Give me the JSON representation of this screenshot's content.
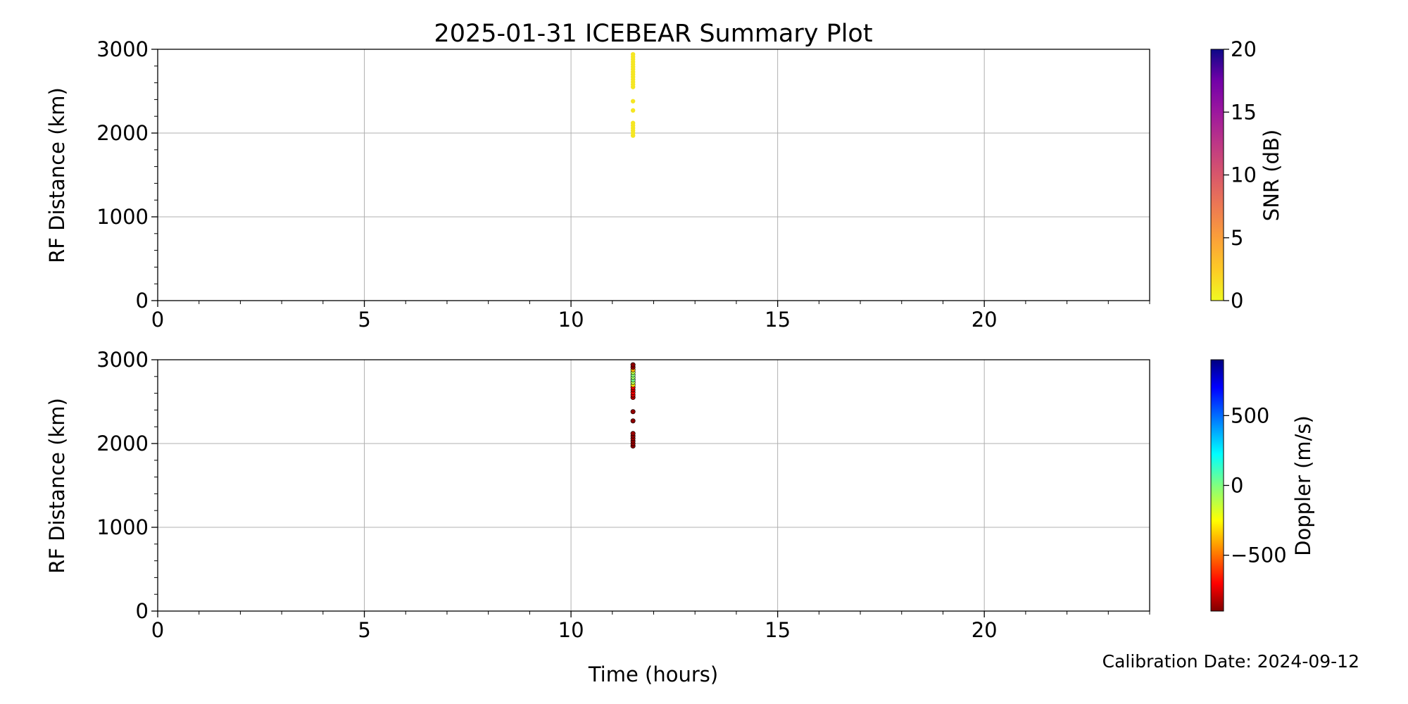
{
  "title": "2025-01-31 ICEBEAR Summary Plot",
  "footer_note": "Calibration Date: 2024-09-12",
  "chart_data": [
    {
      "type": "scatter",
      "xlabel": "",
      "ylabel": "RF Distance (km)",
      "xlim": [
        0,
        24
      ],
      "ylim": [
        0,
        3000
      ],
      "xticks": [
        "0",
        "5",
        "10",
        "15",
        "20"
      ],
      "yticks": [
        "0",
        "1000",
        "2000",
        "3000"
      ],
      "grid": true,
      "colorbar": {
        "label": "SNR (dB)",
        "colormap": "plasma_r",
        "range": [
          0,
          20
        ],
        "ticks": [
          "0",
          "5",
          "10",
          "15",
          "20"
        ]
      },
      "points": [
        {
          "x": 11.5,
          "y": 1970,
          "c": 1
        },
        {
          "x": 11.5,
          "y": 2000,
          "c": 1
        },
        {
          "x": 11.5,
          "y": 2030,
          "c": 1
        },
        {
          "x": 11.5,
          "y": 2060,
          "c": 1
        },
        {
          "x": 11.5,
          "y": 2090,
          "c": 1
        },
        {
          "x": 11.5,
          "y": 2120,
          "c": 1
        },
        {
          "x": 11.5,
          "y": 2270,
          "c": 1
        },
        {
          "x": 11.5,
          "y": 2380,
          "c": 1
        },
        {
          "x": 11.5,
          "y": 2550,
          "c": 1
        },
        {
          "x": 11.5,
          "y": 2580,
          "c": 1
        },
        {
          "x": 11.5,
          "y": 2610,
          "c": 1
        },
        {
          "x": 11.5,
          "y": 2640,
          "c": 1
        },
        {
          "x": 11.5,
          "y": 2670,
          "c": 1
        },
        {
          "x": 11.5,
          "y": 2700,
          "c": 1
        },
        {
          "x": 11.5,
          "y": 2730,
          "c": 1
        },
        {
          "x": 11.5,
          "y": 2760,
          "c": 1
        },
        {
          "x": 11.5,
          "y": 2790,
          "c": 1
        },
        {
          "x": 11.5,
          "y": 2820,
          "c": 1
        },
        {
          "x": 11.5,
          "y": 2850,
          "c": 1
        },
        {
          "x": 11.5,
          "y": 2880,
          "c": 1
        },
        {
          "x": 11.5,
          "y": 2910,
          "c": 1
        },
        {
          "x": 11.5,
          "y": 2940,
          "c": 1
        }
      ]
    },
    {
      "type": "scatter",
      "xlabel": "Time (hours)",
      "ylabel": "RF Distance (km)",
      "xlim": [
        0,
        24
      ],
      "ylim": [
        0,
        3000
      ],
      "xticks": [
        "0",
        "5",
        "10",
        "15",
        "20"
      ],
      "yticks": [
        "0",
        "1000",
        "2000",
        "3000"
      ],
      "grid": true,
      "colorbar": {
        "label": "Doppler (m/s)",
        "colormap": "jet",
        "range": [
          -900,
          900
        ],
        "ticks": [
          "−500",
          "0",
          "500"
        ],
        "tick_values": [
          -500,
          0,
          500
        ]
      },
      "points": [
        {
          "x": 11.5,
          "y": 1970,
          "c": -880
        },
        {
          "x": 11.5,
          "y": 2000,
          "c": -860
        },
        {
          "x": 11.5,
          "y": 2030,
          "c": -870
        },
        {
          "x": 11.5,
          "y": 2060,
          "c": -850
        },
        {
          "x": 11.5,
          "y": 2090,
          "c": -870
        },
        {
          "x": 11.5,
          "y": 2120,
          "c": -860
        },
        {
          "x": 11.5,
          "y": 2270,
          "c": -880
        },
        {
          "x": 11.5,
          "y": 2380,
          "c": -870
        },
        {
          "x": 11.5,
          "y": 2550,
          "c": -820
        },
        {
          "x": 11.5,
          "y": 2580,
          "c": -760
        },
        {
          "x": 11.5,
          "y": 2610,
          "c": -700
        },
        {
          "x": 11.5,
          "y": 2640,
          "c": -780
        },
        {
          "x": 11.5,
          "y": 2670,
          "c": -720
        },
        {
          "x": 11.5,
          "y": 2700,
          "c": -300
        },
        {
          "x": 11.5,
          "y": 2730,
          "c": -100
        },
        {
          "x": 11.5,
          "y": 2760,
          "c": 20
        },
        {
          "x": 11.5,
          "y": 2790,
          "c": -60
        },
        {
          "x": 11.5,
          "y": 2820,
          "c": -20
        },
        {
          "x": 11.5,
          "y": 2850,
          "c": -120
        },
        {
          "x": 11.5,
          "y": 2880,
          "c": -400
        },
        {
          "x": 11.5,
          "y": 2910,
          "c": -860
        },
        {
          "x": 11.5,
          "y": 2940,
          "c": -880
        }
      ]
    }
  ]
}
